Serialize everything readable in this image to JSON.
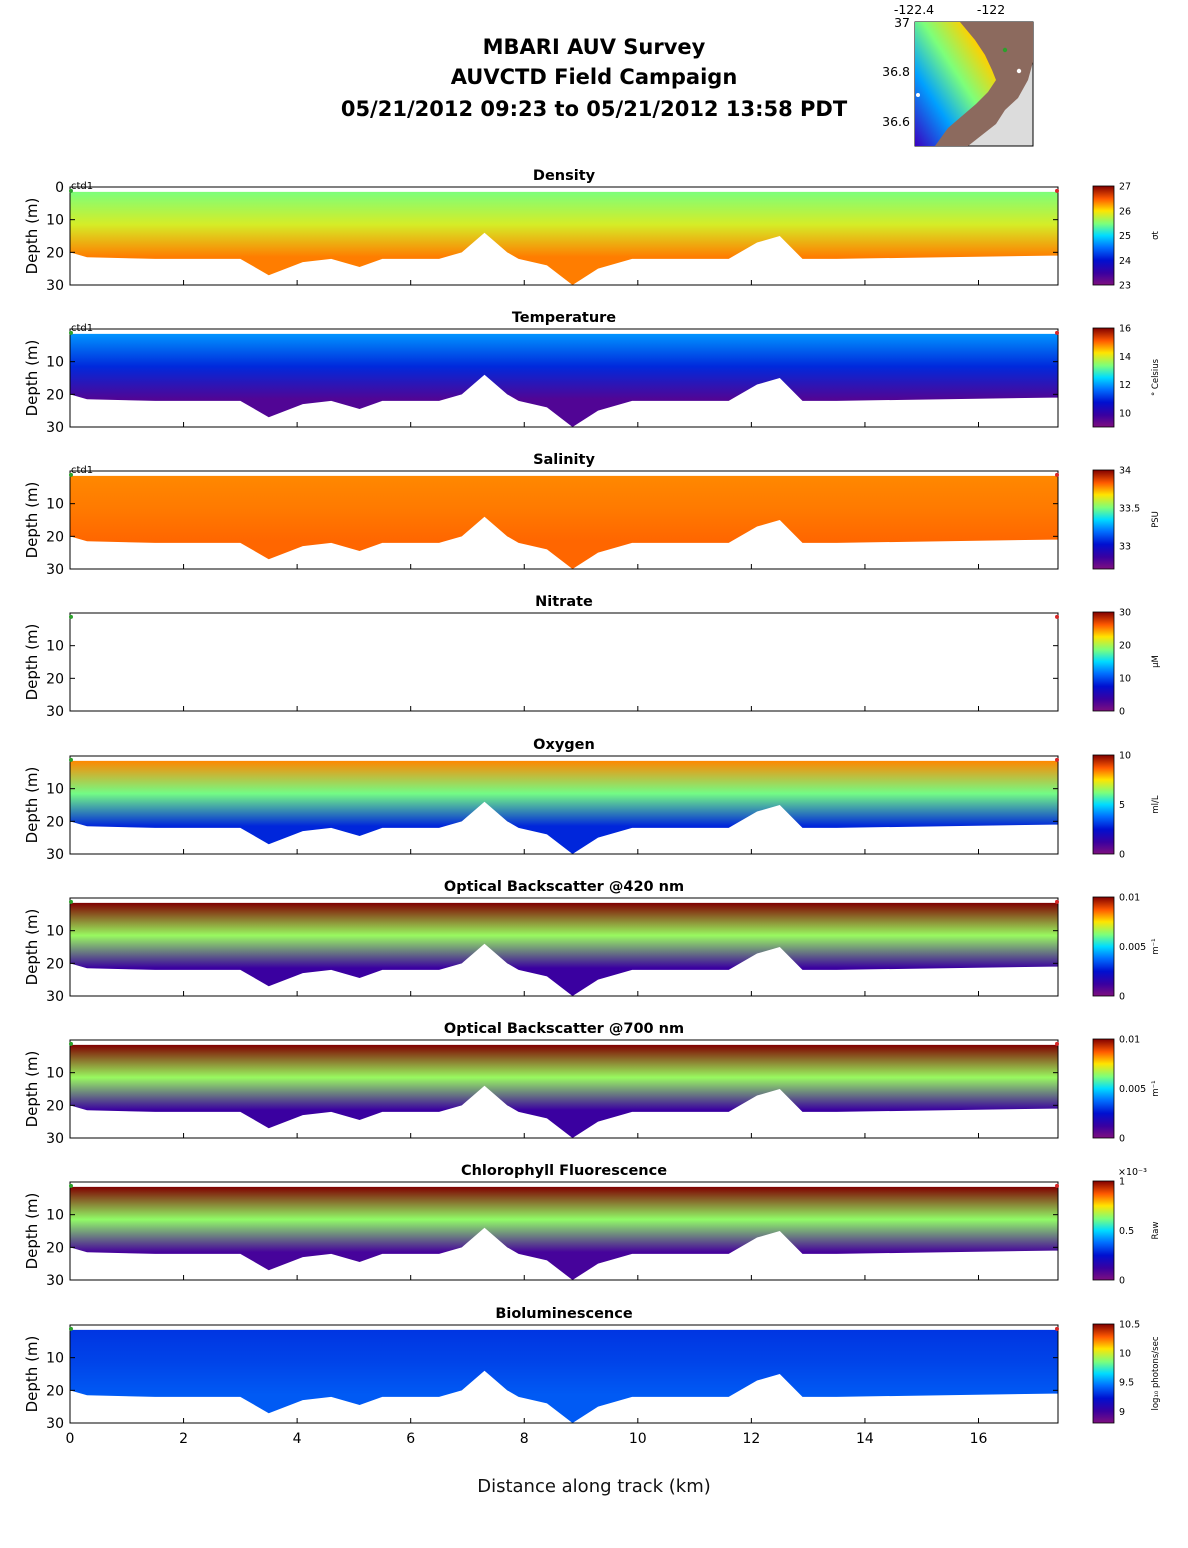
{
  "header": {
    "title_line1": "MBARI AUV Survey",
    "title_line2": "AUVCTD Field Campaign",
    "title_line3": "05/21/2012 09:23  to 05/21/2012 13:58 PDT"
  },
  "map_inset": {
    "lon_ticks": [
      "-122.4",
      "-122"
    ],
    "lat_ticks": [
      "37",
      "36.8",
      "36.6"
    ]
  },
  "chart_data": [
    {
      "type": "heatmap",
      "title": "Density",
      "ylabel": "Depth (m)",
      "ylim": [
        0,
        30
      ],
      "yticks": [
        "0",
        "10",
        "20",
        "30"
      ],
      "platform_label": "ctd1",
      "colorbar": {
        "ticks": [
          "27",
          "26",
          "25",
          "24",
          "23"
        ],
        "unit": "σt",
        "range": [
          23,
          27
        ]
      },
      "colormap": "jet"
    },
    {
      "type": "heatmap",
      "title": "Temperature",
      "ylabel": "Depth (m)",
      "ylim": [
        0,
        30
      ],
      "yticks": [
        "10",
        "20",
        "30"
      ],
      "platform_label": "ctd1",
      "colorbar": {
        "ticks": [
          "16",
          "14",
          "12",
          "10"
        ],
        "unit": "° Celsius",
        "range": [
          9,
          16
        ]
      },
      "colormap": "jet"
    },
    {
      "type": "heatmap",
      "title": "Salinity",
      "ylabel": "Depth (m)",
      "ylim": [
        0,
        30
      ],
      "yticks": [
        "10",
        "20",
        "30"
      ],
      "platform_label": "ctd1",
      "colorbar": {
        "ticks": [
          "34",
          "33.5",
          "33"
        ],
        "unit": "PSU",
        "range": [
          32.7,
          34
        ]
      },
      "colormap": "jet"
    },
    {
      "type": "heatmap",
      "title": "Nitrate",
      "ylabel": "Depth (m)",
      "ylim": [
        0,
        30
      ],
      "yticks": [
        "10",
        "20",
        "30"
      ],
      "platform_label": "",
      "colorbar": {
        "ticks": [
          "30",
          "20",
          "10",
          "0"
        ],
        "unit": "μM",
        "range": [
          0,
          30
        ]
      },
      "colormap": "jet",
      "empty": true
    },
    {
      "type": "heatmap",
      "title": "Oxygen",
      "ylabel": "Depth (m)",
      "ylim": [
        0,
        30
      ],
      "yticks": [
        "10",
        "20",
        "30"
      ],
      "platform_label": "",
      "colorbar": {
        "ticks": [
          "10",
          "5",
          "0"
        ],
        "unit": "ml/L",
        "range": [
          0,
          10
        ]
      },
      "colormap": "jet"
    },
    {
      "type": "heatmap",
      "title": "Optical Backscatter @420 nm",
      "ylabel": "Depth (m)",
      "ylim": [
        0,
        30
      ],
      "yticks": [
        "10",
        "20",
        "30"
      ],
      "platform_label": "",
      "colorbar": {
        "ticks": [
          "0.01",
          "0.005",
          "0"
        ],
        "unit": "m⁻¹",
        "range": [
          0,
          0.01
        ]
      },
      "colormap": "jet"
    },
    {
      "type": "heatmap",
      "title": "Optical Backscatter @700 nm",
      "ylabel": "Depth (m)",
      "ylim": [
        0,
        30
      ],
      "yticks": [
        "10",
        "20",
        "30"
      ],
      "platform_label": "",
      "colorbar": {
        "ticks": [
          "0.01",
          "0.005",
          "0"
        ],
        "unit": "m⁻¹",
        "range": [
          0,
          0.01
        ]
      },
      "colormap": "jet"
    },
    {
      "type": "heatmap",
      "title": "Chlorophyll Fluorescence",
      "ylabel": "Depth (m)",
      "ylim": [
        0,
        30
      ],
      "yticks": [
        "10",
        "20",
        "30"
      ],
      "platform_label": "",
      "colorbar": {
        "ticks": [
          "1",
          "0.5",
          "0"
        ],
        "unit": "Raw",
        "exponent": "×10⁻³",
        "range": [
          0,
          1
        ]
      },
      "colormap": "jet"
    },
    {
      "type": "heatmap",
      "title": "Bioluminescence",
      "ylabel": "Depth (m)",
      "ylim": [
        0,
        30
      ],
      "yticks": [
        "10",
        "20",
        "30"
      ],
      "platform_label": "",
      "colorbar": {
        "ticks": [
          "10.5",
          "10",
          "9.5",
          "9"
        ],
        "unit": "log₁₀ photons/sec",
        "range": [
          8.8,
          10.5
        ]
      },
      "colormap": "jet"
    }
  ],
  "x_axis": {
    "label": "Distance along track (km)",
    "ticks": [
      "0",
      "2",
      "4",
      "6",
      "8",
      "10",
      "12",
      "14",
      "16"
    ],
    "range": [
      0,
      17.4
    ]
  },
  "colors": {
    "bottom_fill": "#ffffff",
    "track_line": "#c8c8c8",
    "start_marker": "#2ca02c",
    "end_marker": "#d62728"
  }
}
